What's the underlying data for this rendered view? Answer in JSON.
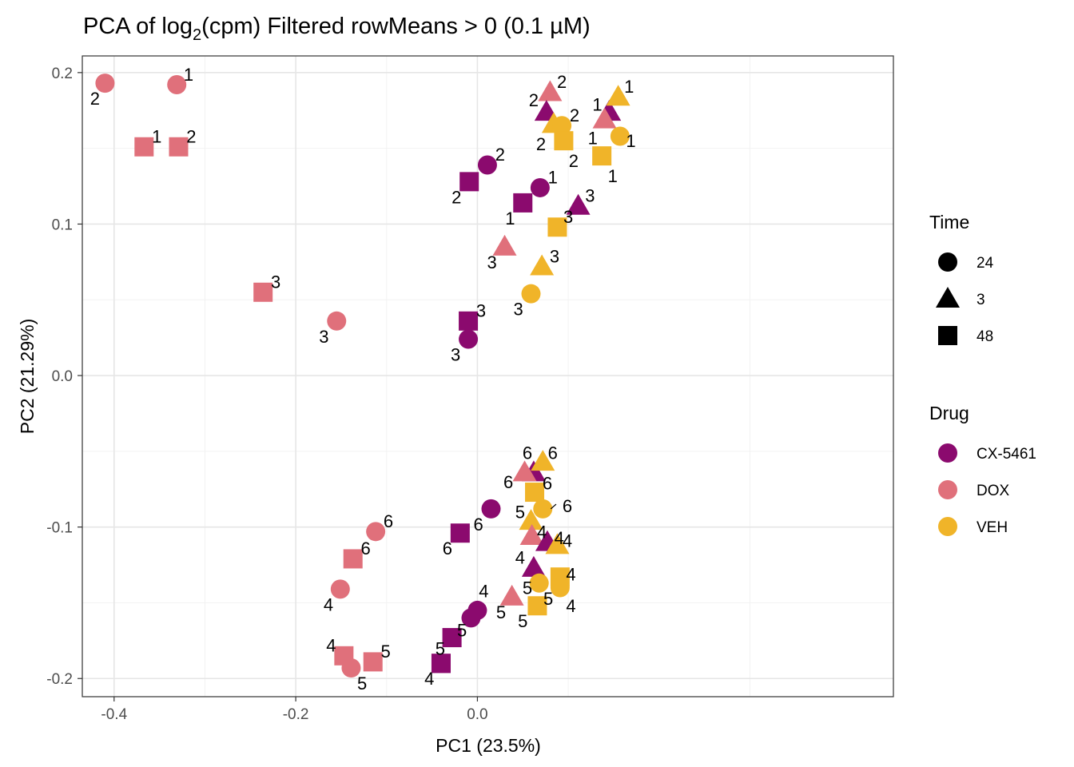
{
  "chart_data": {
    "type": "scatter",
    "title": {
      "prefix": "PCA of log",
      "subscript": "2",
      "suffix": "(cpm) Filtered rowMeans > 0 (0.1 µM)"
    },
    "xlabel": "PC1 (23.5%)",
    "ylabel": "PC2 (21.29%)",
    "xlim": [
      -0.435,
      0.458
    ],
    "ylim": [
      -0.212,
      0.211
    ],
    "xticks": [
      {
        "value": -0.4,
        "label": "-0.4"
      },
      {
        "value": -0.2,
        "label": "-0.2"
      },
      {
        "value": 0.0,
        "label": "0.0"
      }
    ],
    "yticks": [
      {
        "value": 0.2,
        "label": "0.2"
      },
      {
        "value": 0.1,
        "label": "0.1"
      },
      {
        "value": 0.0,
        "label": "0.0"
      },
      {
        "value": -0.1,
        "label": "-0.1"
      },
      {
        "value": -0.2,
        "label": "-0.2"
      }
    ],
    "grid": true,
    "colors": {
      "CX-5461": "#8b0a6e",
      "DOX": "#e0707b",
      "VEH": "#f0b429"
    },
    "legend_time": {
      "title": "Time",
      "items": [
        {
          "label": "24",
          "shape": "circle"
        },
        {
          "label": "3",
          "shape": "triangle"
        },
        {
          "label": "48",
          "shape": "square"
        }
      ]
    },
    "legend_drug": {
      "title": "Drug",
      "items": [
        {
          "label": "CX-5461"
        },
        {
          "label": "DOX"
        },
        {
          "label": "VEH"
        }
      ]
    },
    "points": [
      {
        "x": -0.41,
        "y": 0.193,
        "drug": "DOX",
        "time": "24",
        "label": "2",
        "lx": -0.421,
        "ly": 0.183
      },
      {
        "x": -0.331,
        "y": 0.192,
        "drug": "DOX",
        "time": "24",
        "label": "1",
        "lx": -0.318,
        "ly": 0.199
      },
      {
        "x": -0.367,
        "y": 0.151,
        "drug": "DOX",
        "time": "48",
        "label": "1",
        "lx": -0.353,
        "ly": 0.158
      },
      {
        "x": -0.329,
        "y": 0.151,
        "drug": "DOX",
        "time": "48",
        "label": "2",
        "lx": -0.315,
        "ly": 0.158
      },
      {
        "x": -0.236,
        "y": 0.055,
        "drug": "DOX",
        "time": "48",
        "label": "3",
        "lx": -0.222,
        "ly": 0.062
      },
      {
        "x": -0.155,
        "y": 0.036,
        "drug": "DOX",
        "time": "24",
        "label": "3",
        "lx": -0.169,
        "ly": 0.026
      },
      {
        "x": 0.011,
        "y": 0.139,
        "drug": "CX-5461",
        "time": "24",
        "label": "2",
        "lx": 0.025,
        "ly": 0.146
      },
      {
        "x": -0.009,
        "y": 0.128,
        "drug": "CX-5461",
        "time": "48",
        "label": "2",
        "lx": -0.023,
        "ly": 0.118
      },
      {
        "x": 0.069,
        "y": 0.124,
        "drug": "CX-5461",
        "time": "24",
        "label": "1",
        "lx": 0.083,
        "ly": 0.131
      },
      {
        "x": 0.05,
        "y": 0.114,
        "drug": "CX-5461",
        "time": "48",
        "label": "1",
        "lx": 0.036,
        "ly": 0.104
      },
      {
        "x": 0.111,
        "y": 0.112,
        "drug": "CX-5461",
        "time": "3",
        "label": "3",
        "lx": 0.124,
        "ly": 0.119
      },
      {
        "x": 0.088,
        "y": 0.098,
        "drug": "VEH",
        "time": "48",
        "label": "3",
        "lx": 0.1,
        "ly": 0.105
      },
      {
        "x": 0.03,
        "y": 0.085,
        "drug": "DOX",
        "time": "3",
        "label": "3",
        "lx": 0.016,
        "ly": 0.075
      },
      {
        "x": 0.071,
        "y": 0.072,
        "drug": "VEH",
        "time": "3",
        "label": "3",
        "lx": 0.085,
        "ly": 0.079
      },
      {
        "x": 0.059,
        "y": 0.054,
        "drug": "VEH",
        "time": "24",
        "label": "3",
        "lx": 0.045,
        "ly": 0.044
      },
      {
        "x": -0.01,
        "y": 0.036,
        "drug": "CX-5461",
        "time": "48",
        "label": "3",
        "lx": 0.004,
        "ly": 0.043
      },
      {
        "x": -0.01,
        "y": 0.024,
        "drug": "CX-5461",
        "time": "24",
        "label": "3",
        "lx": -0.024,
        "ly": 0.014
      },
      {
        "x": 0.08,
        "y": 0.187,
        "drug": "DOX",
        "time": "3",
        "label": "2",
        "lx": 0.093,
        "ly": 0.194
      },
      {
        "x": 0.076,
        "y": 0.174,
        "drug": "CX-5461",
        "time": "3",
        "label": "2",
        "lx": 0.062,
        "ly": 0.182
      },
      {
        "x": 0.084,
        "y": 0.166,
        "drug": "VEH",
        "time": "3",
        "label": "2",
        "lx": 0.07,
        "ly": 0.153
      },
      {
        "x": 0.093,
        "y": 0.165,
        "drug": "VEH",
        "time": "24",
        "label": "2",
        "lx": 0.107,
        "ly": 0.172
      },
      {
        "x": 0.095,
        "y": 0.155,
        "drug": "VEH",
        "time": "48",
        "label": "2",
        "lx": 0.106,
        "ly": 0.142
      },
      {
        "x": 0.145,
        "y": 0.174,
        "drug": "CX-5461",
        "time": "3",
        "label": "1",
        "lx": 0.132,
        "ly": 0.179
      },
      {
        "x": 0.155,
        "y": 0.184,
        "drug": "VEH",
        "time": "3",
        "label": "1",
        "lx": 0.167,
        "ly": 0.191
      },
      {
        "x": 0.14,
        "y": 0.169,
        "drug": "DOX",
        "time": "3",
        "label": "1",
        "lx": 0.127,
        "ly": 0.157
      },
      {
        "x": 0.157,
        "y": 0.158,
        "drug": "VEH",
        "time": "24",
        "label": "1",
        "lx": 0.169,
        "ly": 0.155
      },
      {
        "x": 0.137,
        "y": 0.145,
        "drug": "VEH",
        "time": "48",
        "label": "1",
        "lx": 0.149,
        "ly": 0.132
      },
      {
        "x": 0.015,
        "y": -0.088,
        "drug": "CX-5461",
        "time": "24",
        "label": "6",
        "lx": 0.001,
        "ly": -0.098
      },
      {
        "x": -0.019,
        "y": -0.104,
        "drug": "CX-5461",
        "time": "48",
        "label": "6",
        "lx": -0.033,
        "ly": -0.114
      },
      {
        "x": 0.062,
        "y": -0.064,
        "drug": "CX-5461",
        "time": "3",
        "label": "6",
        "lx": 0.055,
        "ly": -0.051
      },
      {
        "x": 0.052,
        "y": -0.064,
        "drug": "DOX",
        "time": "3",
        "label": "6",
        "lx": 0.034,
        "ly": -0.07
      },
      {
        "x": 0.072,
        "y": -0.057,
        "drug": "VEH",
        "time": "3",
        "label": "6",
        "lx": 0.083,
        "ly": -0.051
      },
      {
        "x": 0.063,
        "y": -0.077,
        "drug": "VEH",
        "time": "48",
        "label": "6",
        "lx": 0.077,
        "ly": -0.071
      },
      {
        "x": 0.072,
        "y": -0.088,
        "drug": "VEH",
        "time": "24",
        "label": "6",
        "lx": 0.099,
        "ly": -0.086,
        "leader": true
      },
      {
        "x": 0.059,
        "y": -0.096,
        "drug": "VEH",
        "time": "3",
        "label": "5",
        "lx": 0.047,
        "ly": -0.09
      },
      {
        "x": 0.06,
        "y": -0.106,
        "drug": "DOX",
        "time": "3",
        "label": "4",
        "lx": 0.071,
        "ly": -0.103
      },
      {
        "x": 0.077,
        "y": -0.11,
        "drug": "CX-5461",
        "time": "3",
        "label": "4",
        "lx": 0.09,
        "ly": -0.107
      },
      {
        "x": 0.088,
        "y": -0.112,
        "drug": "VEH",
        "time": "3",
        "label": "4",
        "lx": 0.099,
        "ly": -0.109
      },
      {
        "x": 0.062,
        "y": -0.127,
        "drug": "CX-5461",
        "time": "3",
        "label": "4",
        "lx": 0.047,
        "ly": -0.12
      },
      {
        "x": 0.068,
        "y": -0.137,
        "drug": "VEH",
        "time": "24",
        "label": "5",
        "lx": 0.055,
        "ly": -0.14
      },
      {
        "x": 0.091,
        "y": -0.133,
        "drug": "VEH",
        "time": "48",
        "label": "4",
        "lx": 0.103,
        "ly": -0.131
      },
      {
        "x": 0.091,
        "y": -0.14,
        "drug": "VEH",
        "time": "24",
        "label": "4",
        "lx": 0.103,
        "ly": -0.152
      },
      {
        "x": 0.066,
        "y": -0.152,
        "drug": "VEH",
        "time": "48",
        "label": "5",
        "lx": 0.078,
        "ly": -0.147
      },
      {
        "x": 0.038,
        "y": -0.146,
        "drug": "DOX",
        "time": "3",
        "label": "5",
        "lx": 0.026,
        "ly": -0.156
      },
      {
        "x": 0.0,
        "y": -0.155,
        "drug": "CX-5461",
        "time": "24",
        "label": "4",
        "lx": 0.007,
        "ly": -0.142
      },
      {
        "x": -0.007,
        "y": -0.16,
        "drug": "CX-5461",
        "time": "24",
        "label": "5",
        "lx": 0.05,
        "ly": -0.162
      },
      {
        "x": -0.028,
        "y": -0.173,
        "drug": "CX-5461",
        "time": "48",
        "label": "5",
        "lx": -0.017,
        "ly": -0.168
      },
      {
        "x": -0.04,
        "y": -0.19,
        "drug": "CX-5461",
        "time": "48",
        "label": "5",
        "lx": -0.041,
        "ly": -0.18
      },
      {
        "x": -0.04,
        "y": -0.19,
        "drug": "CX-5461",
        "time": "48",
        "label": "4",
        "lx": -0.053,
        "ly": -0.2
      },
      {
        "x": -0.112,
        "y": -0.103,
        "drug": "DOX",
        "time": "24",
        "label": "6",
        "lx": -0.098,
        "ly": -0.096
      },
      {
        "x": -0.137,
        "y": -0.121,
        "drug": "DOX",
        "time": "48",
        "label": "6",
        "lx": -0.123,
        "ly": -0.114
      },
      {
        "x": -0.151,
        "y": -0.141,
        "drug": "DOX",
        "time": "24",
        "label": "4",
        "lx": -0.164,
        "ly": -0.151
      },
      {
        "x": -0.147,
        "y": -0.185,
        "drug": "DOX",
        "time": "48",
        "label": "4",
        "lx": -0.161,
        "ly": -0.178
      },
      {
        "x": -0.139,
        "y": -0.193,
        "drug": "DOX",
        "time": "24",
        "label": "5",
        "lx": -0.127,
        "ly": -0.203
      },
      {
        "x": -0.115,
        "y": -0.189,
        "drug": "DOX",
        "time": "48",
        "label": "5",
        "lx": -0.101,
        "ly": -0.182
      }
    ]
  }
}
